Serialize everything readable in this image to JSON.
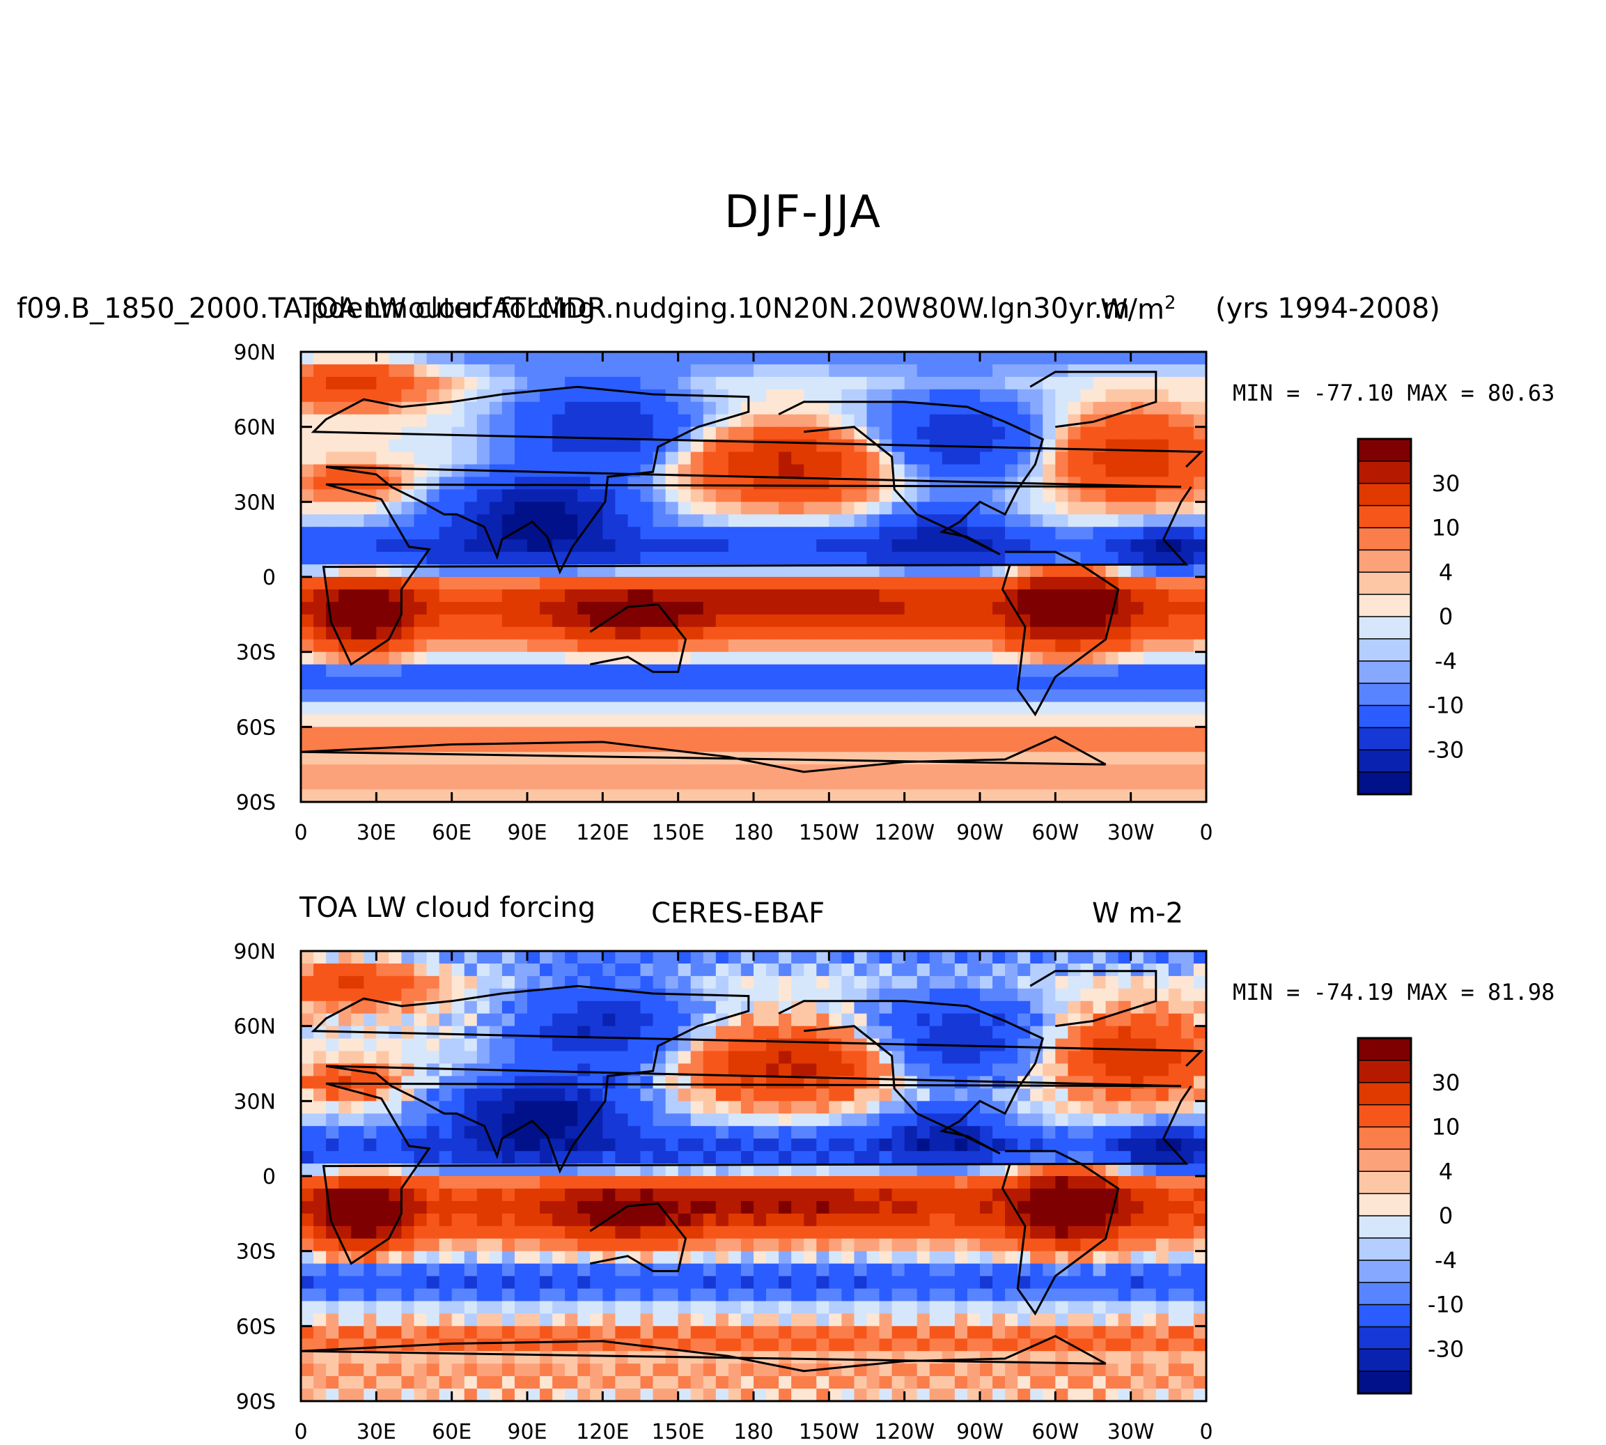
{
  "figure": {
    "title": "DJF-JJA"
  },
  "top_panel": {
    "left_title": "f09.B_1850_2000.TA.pdenmouterfATLMDR.nudging.10N20N.20W80W.lgn30yr.m",
    "center_title": "TOA LW cloud forcing",
    "units": "W/m",
    "units_sup": "2",
    "years": "(yrs 1994-2008)",
    "minmax": "MIN = -77.10 MAX =  80.63"
  },
  "bottom_panel": {
    "left_title": "TOA LW cloud forcing",
    "center_title": "CERES-EBAF",
    "units": "W m-2",
    "minmax": "MIN = -74.19 MAX =  81.98"
  },
  "colors": {
    "levels": [
      "#7f0000",
      "#b51a00",
      "#e03a00",
      "#f7561a",
      "#fb7d4a",
      "#fca27a",
      "#fdc7a6",
      "#fde6d3",
      "#d6e7fb",
      "#b4ceff",
      "#86a8ff",
      "#5984ff",
      "#2a5cff",
      "#1638d6",
      "#0a22b0",
      "#00118a"
    ],
    "coast": "#000000"
  },
  "chart_data": [
    {
      "type": "heatmap",
      "title": "DJF-JJA",
      "subtitle": "TOA LW cloud forcing",
      "units": "W/m2",
      "min": -77.1,
      "max": 80.63,
      "x_ticks": [
        "0",
        "30E",
        "60E",
        "90E",
        "120E",
        "150E",
        "180",
        "150W",
        "120W",
        "90W",
        "60W",
        "30W",
        "0"
      ],
      "y_ticks": [
        "90N",
        "60N",
        "30N",
        "0",
        "30S",
        "60S",
        "90S"
      ],
      "xlim": [
        0,
        360
      ],
      "ylim": [
        -90,
        90
      ],
      "colorbar_labels": [
        "30",
        "10",
        "4",
        "0",
        "-4",
        "-10",
        "-30"
      ],
      "colorbar_levels": [
        50,
        40,
        30,
        20,
        10,
        6,
        4,
        2,
        0,
        -2,
        -4,
        -6,
        -10,
        -20,
        -30,
        -40,
        -50
      ]
    },
    {
      "type": "heatmap",
      "title": "CERES-EBAF",
      "subtitle": "TOA LW cloud forcing",
      "units": "W m-2",
      "min": -74.19,
      "max": 81.98,
      "x_ticks": [
        "0",
        "30E",
        "60E",
        "90E",
        "120E",
        "150E",
        "180",
        "150W",
        "120W",
        "90W",
        "60W",
        "30W",
        "0"
      ],
      "y_ticks": [
        "90N",
        "60N",
        "30N",
        "0",
        "30S",
        "60S",
        "90S"
      ],
      "xlim": [
        0,
        360
      ],
      "ylim": [
        -90,
        90
      ],
      "colorbar_labels": [
        "30",
        "10",
        "4",
        "0",
        "-4",
        "-10",
        "-30"
      ],
      "colorbar_levels": [
        50,
        40,
        30,
        20,
        10,
        6,
        4,
        2,
        0,
        -2,
        -4,
        -6,
        -10,
        -20,
        -30,
        -40,
        -50
      ]
    }
  ]
}
